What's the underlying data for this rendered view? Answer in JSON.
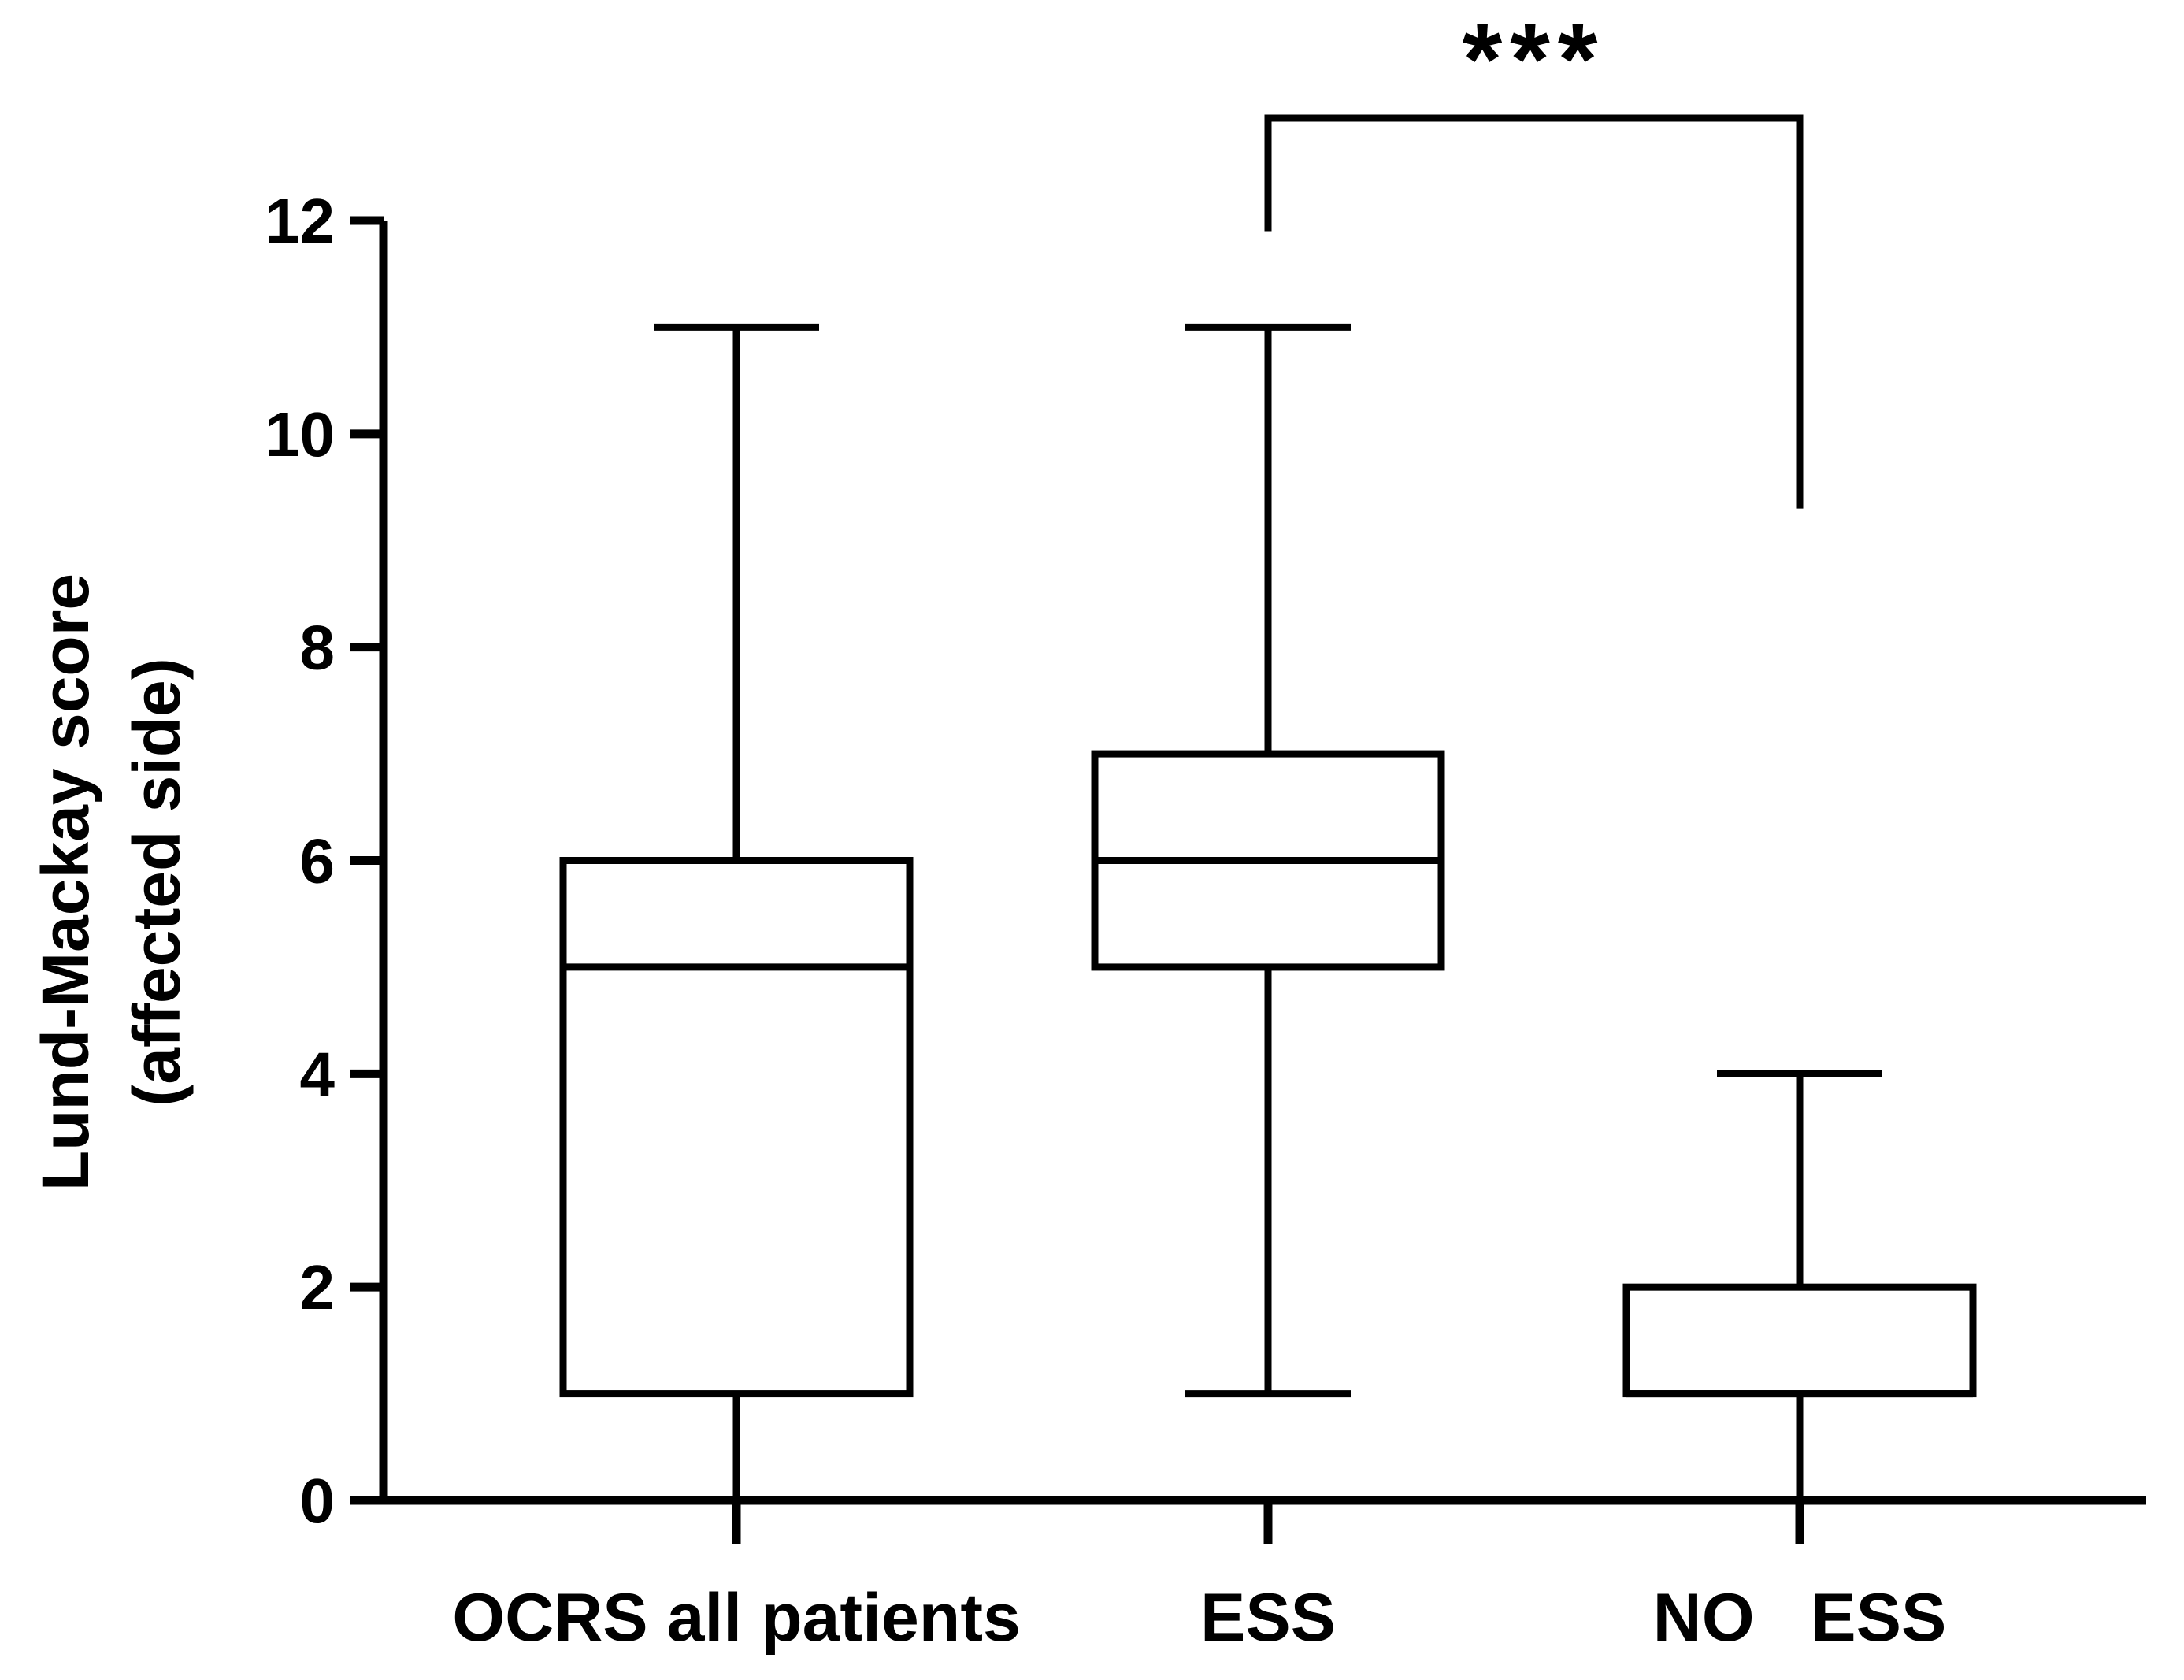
{
  "chart_data": {
    "type": "box",
    "ylabel_line1": "Lund-Mackay score",
    "ylabel_line2": "(affected side)",
    "ylim": [
      0,
      12
    ],
    "yticks": [
      "0",
      "2",
      "4",
      "6",
      "8",
      "10",
      "12"
    ],
    "categories": [
      "OCRS all patients",
      "ESS",
      "NO   ESS"
    ],
    "boxes": [
      {
        "category": "OCRS all patients",
        "min": 0,
        "q1": 1,
        "median": 5,
        "q3": 6,
        "max": 11
      },
      {
        "category": "ESS",
        "min": 1,
        "q1": 5,
        "median": 6,
        "q3": 7,
        "max": 11
      },
      {
        "category": "NO   ESS",
        "min": 0,
        "q1": 1,
        "median": 1,
        "q3": 2,
        "max": 4
      }
    ],
    "significance": {
      "between": [
        "ESS",
        "NO   ESS"
      ],
      "label": "***",
      "left_end": 11.9,
      "right_end": 9.3
    },
    "grid": false,
    "colors": {
      "box_fill": "#ffffff",
      "stroke": "#000000"
    }
  }
}
